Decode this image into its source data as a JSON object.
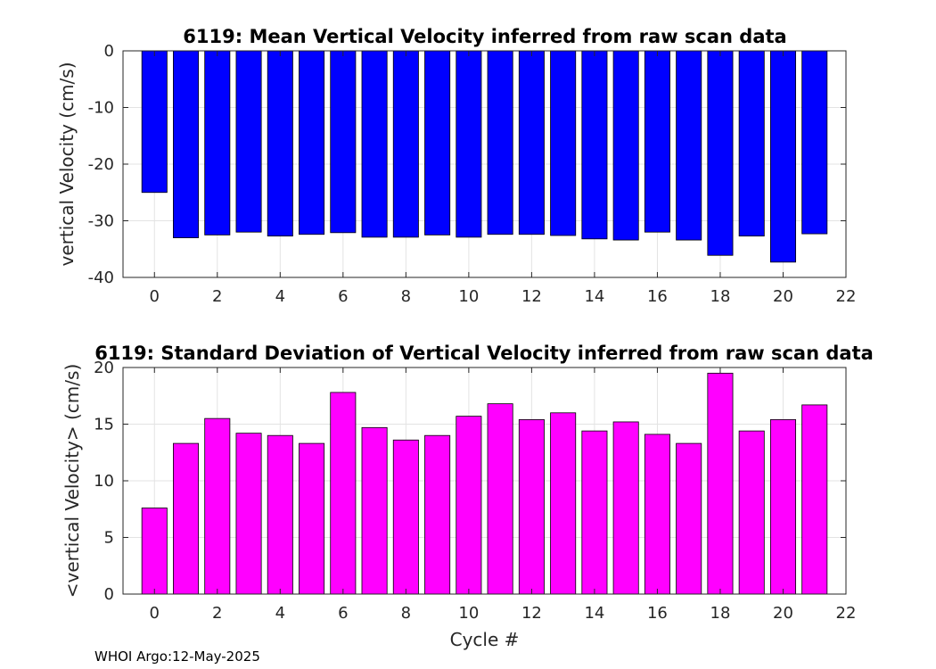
{
  "chart_data": [
    {
      "type": "bar",
      "title": "6119: Mean Vertical Velocity inferred from raw scan data",
      "xlabel": "",
      "ylabel": "vertical Velocity (cm/s)",
      "categories": [
        0,
        1,
        2,
        3,
        4,
        5,
        6,
        7,
        8,
        9,
        10,
        11,
        12,
        13,
        14,
        15,
        16,
        17,
        18,
        19,
        20,
        21
      ],
      "values": [
        -25.0,
        -33.0,
        -32.5,
        -32.0,
        -32.7,
        -32.4,
        -32.1,
        -32.9,
        -32.9,
        -32.5,
        -32.9,
        -32.4,
        -32.4,
        -32.6,
        -33.2,
        -33.4,
        -32.0,
        -33.4,
        -36.1,
        -32.7,
        -37.3,
        -32.3
      ],
      "xlim": [
        -1,
        22
      ],
      "ylim": [
        -40,
        0
      ],
      "xticks": [
        "0",
        "2",
        "4",
        "6",
        "8",
        "10",
        "12",
        "14",
        "16",
        "18",
        "20",
        "22"
      ],
      "yticks": [
        "-40",
        "-30",
        "-20",
        "-10",
        "0"
      ],
      "bar_color": "#0000ff",
      "grid": true
    },
    {
      "type": "bar",
      "title": "6119: Standard Deviation of Vertical Velocity inferred from raw scan data",
      "xlabel": "Cycle #",
      "ylabel": "<vertical Velocity> (cm/s)",
      "categories": [
        0,
        1,
        2,
        3,
        4,
        5,
        6,
        7,
        8,
        9,
        10,
        11,
        12,
        13,
        14,
        15,
        16,
        17,
        18,
        19,
        20,
        21
      ],
      "values": [
        7.6,
        13.3,
        15.5,
        14.2,
        14.0,
        13.3,
        17.8,
        14.7,
        13.6,
        14.0,
        15.7,
        16.8,
        15.4,
        16.0,
        14.4,
        15.2,
        14.1,
        13.3,
        19.5,
        14.4,
        15.4,
        16.7
      ],
      "xlim": [
        -1,
        22
      ],
      "ylim": [
        0,
        20
      ],
      "xticks": [
        "0",
        "2",
        "4",
        "6",
        "8",
        "10",
        "12",
        "14",
        "16",
        "18",
        "20",
        "22"
      ],
      "yticks": [
        "0",
        "5",
        "10",
        "15",
        "20"
      ],
      "bar_color": "#ff00ff",
      "grid": true
    }
  ],
  "footer": "WHOI Argo:12-May-2025"
}
